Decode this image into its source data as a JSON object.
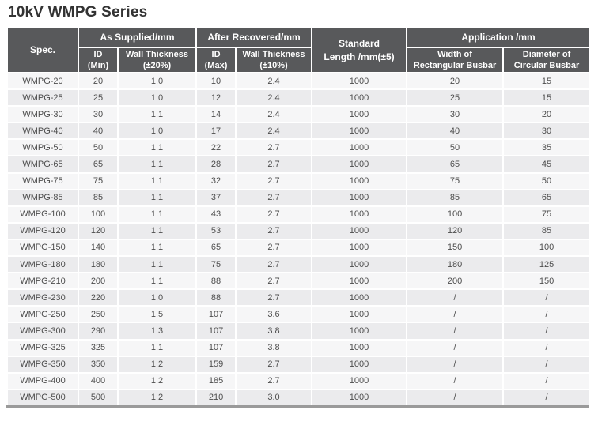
{
  "page_title": "10kV WMPG Series",
  "colors": {
    "header_bg": "#58595b",
    "header_text": "#ffffff",
    "row_light": "#f6f6f7",
    "row_dark": "#ebebed",
    "body_text": "#4d4d4d",
    "title_text": "#333333",
    "bottom_rule": "#9a9a9a"
  },
  "table": {
    "header": {
      "spec": "Spec.",
      "as_supplied": "As Supplied/mm",
      "after_recovered": "After Recovered/mm",
      "standard_length": "Standard\nLength /mm(±5)",
      "application": "Application /mm",
      "id_min": "ID\n(Min)",
      "wall_thickness_20": "Wall Thickness\n(±20%)",
      "id_max": "ID\n(Max)",
      "wall_thickness_10": "Wall Thickness\n(±10%)",
      "width_rect_busbar": "Width of\nRectangular Busbar",
      "dia_circ_busbar": "Diameter of\nCircular Busbar"
    },
    "column_keys": [
      "spec",
      "id_min",
      "wall_supplied",
      "id_max",
      "wall_recovered",
      "standard_length",
      "width_rect",
      "dia_circ"
    ],
    "rows": [
      {
        "spec": "WMPG-20",
        "id_min": "20",
        "wall_supplied": "1.0",
        "id_max": "10",
        "wall_recovered": "2.4",
        "standard_length": "1000",
        "width_rect": "20",
        "dia_circ": "15"
      },
      {
        "spec": "WMPG-25",
        "id_min": "25",
        "wall_supplied": "1.0",
        "id_max": "12",
        "wall_recovered": "2.4",
        "standard_length": "1000",
        "width_rect": "25",
        "dia_circ": "15"
      },
      {
        "spec": "WMPG-30",
        "id_min": "30",
        "wall_supplied": "1.1",
        "id_max": "14",
        "wall_recovered": "2.4",
        "standard_length": "1000",
        "width_rect": "30",
        "dia_circ": "20"
      },
      {
        "spec": "WMPG-40",
        "id_min": "40",
        "wall_supplied": "1.0",
        "id_max": "17",
        "wall_recovered": "2.4",
        "standard_length": "1000",
        "width_rect": "40",
        "dia_circ": "30"
      },
      {
        "spec": "WMPG-50",
        "id_min": "50",
        "wall_supplied": "1.1",
        "id_max": "22",
        "wall_recovered": "2.7",
        "standard_length": "1000",
        "width_rect": "50",
        "dia_circ": "35"
      },
      {
        "spec": "WMPG-65",
        "id_min": "65",
        "wall_supplied": "1.1",
        "id_max": "28",
        "wall_recovered": "2.7",
        "standard_length": "1000",
        "width_rect": "65",
        "dia_circ": "45"
      },
      {
        "spec": "WMPG-75",
        "id_min": "75",
        "wall_supplied": "1.1",
        "id_max": "32",
        "wall_recovered": "2.7",
        "standard_length": "1000",
        "width_rect": "75",
        "dia_circ": "50"
      },
      {
        "spec": "WMPG-85",
        "id_min": "85",
        "wall_supplied": "1.1",
        "id_max": "37",
        "wall_recovered": "2.7",
        "standard_length": "1000",
        "width_rect": "85",
        "dia_circ": "65"
      },
      {
        "spec": "WMPG-100",
        "id_min": "100",
        "wall_supplied": "1.1",
        "id_max": "43",
        "wall_recovered": "2.7",
        "standard_length": "1000",
        "width_rect": "100",
        "dia_circ": "75"
      },
      {
        "spec": "WMPG-120",
        "id_min": "120",
        "wall_supplied": "1.1",
        "id_max": "53",
        "wall_recovered": "2.7",
        "standard_length": "1000",
        "width_rect": "120",
        "dia_circ": "85"
      },
      {
        "spec": "WMPG-150",
        "id_min": "140",
        "wall_supplied": "1.1",
        "id_max": "65",
        "wall_recovered": "2.7",
        "standard_length": "1000",
        "width_rect": "150",
        "dia_circ": "100"
      },
      {
        "spec": "WMPG-180",
        "id_min": "180",
        "wall_supplied": "1.1",
        "id_max": "75",
        "wall_recovered": "2.7",
        "standard_length": "1000",
        "width_rect": "180",
        "dia_circ": "125"
      },
      {
        "spec": "WMPG-210",
        "id_min": "200",
        "wall_supplied": "1.1",
        "id_max": "88",
        "wall_recovered": "2.7",
        "standard_length": "1000",
        "width_rect": "200",
        "dia_circ": "150"
      },
      {
        "spec": "WMPG-230",
        "id_min": "220",
        "wall_supplied": "1.0",
        "id_max": "88",
        "wall_recovered": "2.7",
        "standard_length": "1000",
        "width_rect": "/",
        "dia_circ": "/"
      },
      {
        "spec": "WMPG-250",
        "id_min": "250",
        "wall_supplied": "1.5",
        "id_max": "107",
        "wall_recovered": "3.6",
        "standard_length": "1000",
        "width_rect": "/",
        "dia_circ": "/"
      },
      {
        "spec": "WMPG-300",
        "id_min": "290",
        "wall_supplied": "1.3",
        "id_max": "107",
        "wall_recovered": "3.8",
        "standard_length": "1000",
        "width_rect": "/",
        "dia_circ": "/"
      },
      {
        "spec": "WMPG-325",
        "id_min": "325",
        "wall_supplied": "1.1",
        "id_max": "107",
        "wall_recovered": "3.8",
        "standard_length": "1000",
        "width_rect": "/",
        "dia_circ": "/"
      },
      {
        "spec": "WMPG-350",
        "id_min": "350",
        "wall_supplied": "1.2",
        "id_max": "159",
        "wall_recovered": "2.7",
        "standard_length": "1000",
        "width_rect": "/",
        "dia_circ": "/"
      },
      {
        "spec": "WMPG-400",
        "id_min": "400",
        "wall_supplied": "1.2",
        "id_max": "185",
        "wall_recovered": "2.7",
        "standard_length": "1000",
        "width_rect": "/",
        "dia_circ": "/"
      },
      {
        "spec": "WMPG-500",
        "id_min": "500",
        "wall_supplied": "1.2",
        "id_max": "210",
        "wall_recovered": "3.0",
        "standard_length": "1000",
        "width_rect": "/",
        "dia_circ": "/"
      }
    ]
  }
}
